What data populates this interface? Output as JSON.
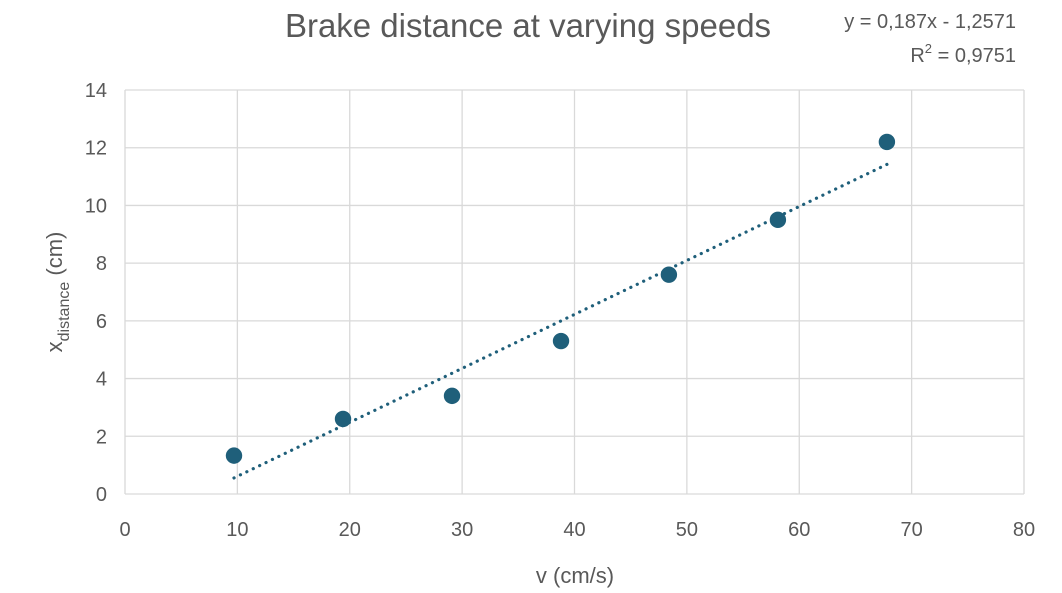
{
  "chart_data": {
    "type": "scatter",
    "title": "Brake distance at varying speeds",
    "xlabel": "v (cm/s)",
    "ylabel": {
      "main": "x",
      "subscript": "distance",
      "suffix": " (cm)"
    },
    "xlim": [
      0,
      80
    ],
    "ylim": [
      0,
      14
    ],
    "xticks": [
      0,
      10,
      20,
      30,
      40,
      50,
      60,
      70,
      80
    ],
    "yticks": [
      0,
      2,
      4,
      6,
      8,
      10,
      12,
      14
    ],
    "grid": true,
    "legend": "none",
    "colors": {
      "points": "#1f5f7a",
      "trendline": "#1f5f7a",
      "grid": "#d9d9d9",
      "text": "#595959"
    },
    "series": [
      {
        "x": [
          9.7,
          19.4,
          29.1,
          38.8,
          48.4,
          58.1,
          67.8
        ],
        "y": [
          1.33,
          2.6,
          3.4,
          5.3,
          7.6,
          9.5,
          12.2
        ]
      }
    ],
    "trendline": {
      "type": "linear",
      "slope": 0.187,
      "intercept": -1.2571,
      "x_range": [
        9.7,
        67.8
      ],
      "equation_label": "y = 0,187x - 1,2571",
      "r2_label": {
        "main": "R",
        "superscript": "2",
        "suffix": " = 0,9751"
      }
    }
  }
}
